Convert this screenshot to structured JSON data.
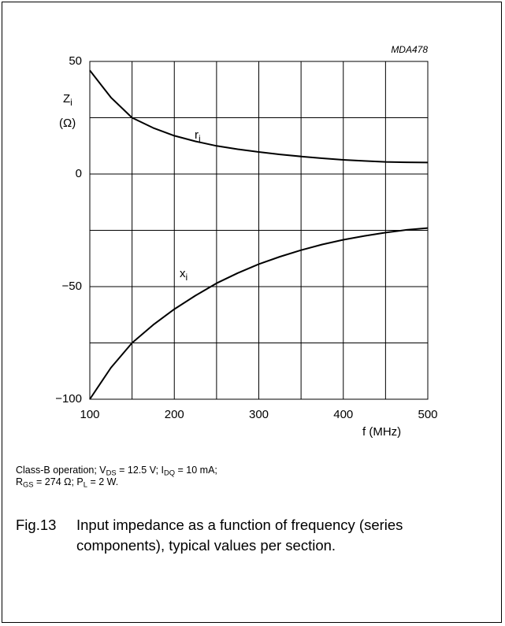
{
  "chart_data": {
    "type": "line",
    "code": "MDA478",
    "ylabel": {
      "main": "Z",
      "sub": "i",
      "unit": "(Ω)"
    },
    "xlabel": "f (MHz)",
    "x": [
      100,
      125,
      150,
      175,
      200,
      225,
      250,
      275,
      300,
      325,
      350,
      375,
      400,
      425,
      450,
      475,
      500
    ],
    "series": [
      {
        "name": "r",
        "sub": "i",
        "color": "#000000",
        "values": [
          46,
          34,
          25,
          20.5,
          17,
          14.5,
          12.5,
          11,
          9.8,
          8.7,
          7.8,
          7,
          6.3,
          5.8,
          5.4,
          5.2,
          5.1
        ]
      },
      {
        "name": "x",
        "sub": "i",
        "color": "#000000",
        "values": [
          -100,
          -86,
          -75,
          -67,
          -60,
          -54,
          -48.5,
          -44,
          -40,
          -36.7,
          -33.8,
          -31.3,
          -29.2,
          -27.5,
          -26,
          -24.8,
          -24
        ]
      }
    ],
    "xlim": [
      100,
      500
    ],
    "xticks": [
      100,
      200,
      300,
      400,
      500
    ],
    "xgrid": [
      150,
      250,
      350,
      450
    ],
    "ylim": [
      -100,
      50
    ],
    "yticks": [
      50,
      0,
      {
        "value": -50,
        "label": "−50"
      },
      {
        "value": -100,
        "label": "−100"
      }
    ],
    "ygrid": [
      25,
      -25,
      -75
    ],
    "grid": true,
    "conditions": [
      [
        {
          "text": "Class-B operation; V"
        },
        {
          "sub": "DS"
        },
        {
          "text": " = 12.5 V; I"
        },
        {
          "sub": "DQ"
        },
        {
          "text": " = 10 mA;"
        }
      ],
      [
        {
          "text": "R"
        },
        {
          "sub": "GS"
        },
        {
          "text": " = 274 Ω; P"
        },
        {
          "sub": "L"
        },
        {
          "text": " = 2 W."
        }
      ]
    ],
    "figure": {
      "number": "Fig.13",
      "caption": "Input impedance as a function of frequency (series components), typical values per section."
    }
  }
}
